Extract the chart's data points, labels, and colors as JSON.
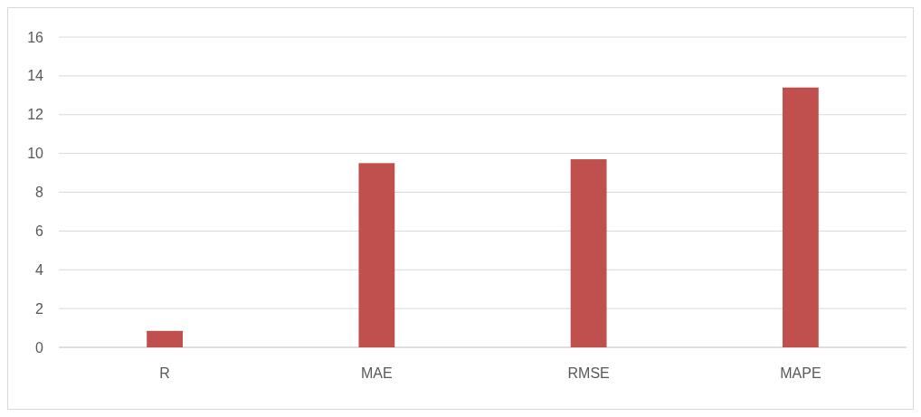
{
  "chart_data": {
    "type": "bar",
    "categories": [
      "R",
      "MAE",
      "RMSE",
      "MAPE"
    ],
    "values": [
      0.85,
      9.5,
      9.7,
      13.4
    ],
    "color": "#c0504d",
    "ylim": [
      0,
      16
    ],
    "yticks": [
      0,
      2,
      4,
      6,
      8,
      10,
      12,
      14,
      16
    ],
    "grid": "y"
  }
}
